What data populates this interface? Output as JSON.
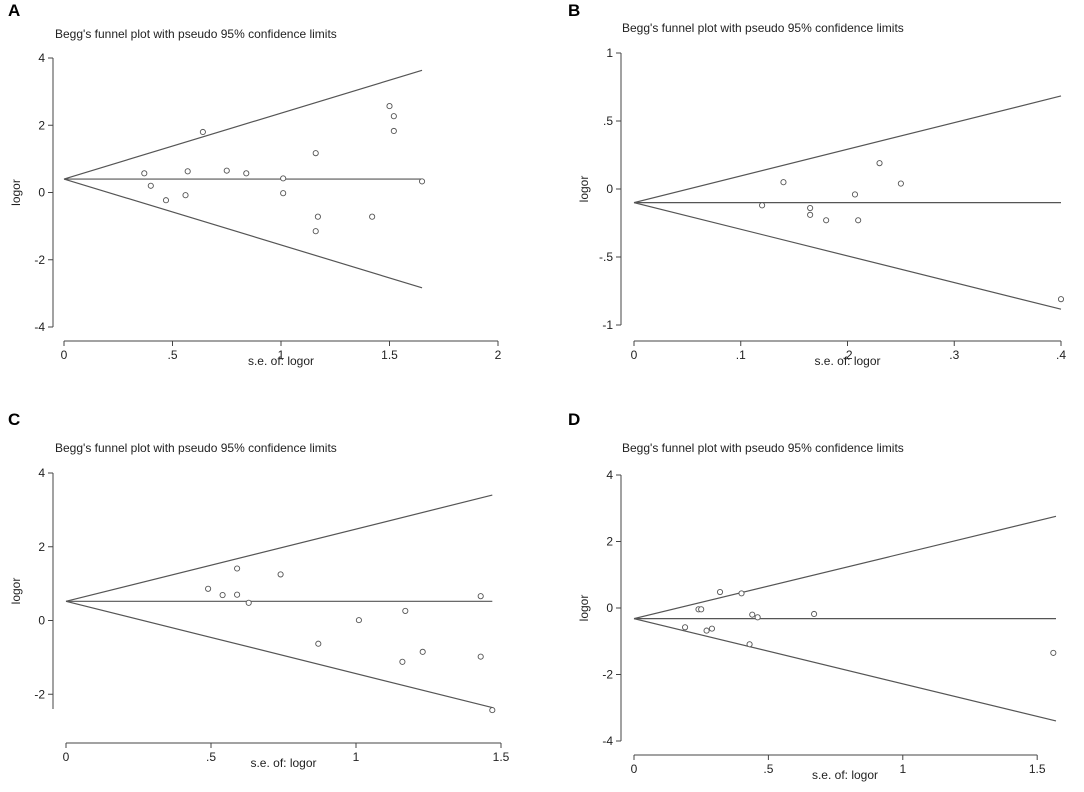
{
  "chart_data": [
    {
      "panel": "A",
      "type": "scatter",
      "title": "Begg's funnel plot with pseudo 95% confidence limits",
      "xlabel": "s.e. of: logor",
      "ylabel": "logor",
      "xlim": [
        0,
        2
      ],
      "ylim": [
        -4,
        4
      ],
      "xticks": [
        0,
        0.5,
        1,
        1.5,
        2
      ],
      "xtick_labels": [
        "0",
        ".5",
        "1",
        "1.5",
        "2"
      ],
      "yticks": [
        -4,
        -2,
        0,
        2,
        4
      ],
      "ytick_labels": [
        "-4",
        "-2",
        "0",
        "2",
        "4"
      ],
      "pooled": 0.4,
      "se_max": 1.65,
      "points": [
        {
          "x": 0.37,
          "y": 0.57
        },
        {
          "x": 0.4,
          "y": 0.2
        },
        {
          "x": 0.47,
          "y": -0.23
        },
        {
          "x": 0.56,
          "y": -0.08
        },
        {
          "x": 0.57,
          "y": 0.63
        },
        {
          "x": 0.64,
          "y": 1.8
        },
        {
          "x": 0.75,
          "y": 0.65
        },
        {
          "x": 0.84,
          "y": 0.57
        },
        {
          "x": 1.01,
          "y": 0.42
        },
        {
          "x": 1.01,
          "y": -0.02
        },
        {
          "x": 1.16,
          "y": 1.17
        },
        {
          "x": 1.17,
          "y": -0.72
        },
        {
          "x": 1.16,
          "y": -1.15
        },
        {
          "x": 1.42,
          "y": -0.72
        },
        {
          "x": 1.5,
          "y": 2.57
        },
        {
          "x": 1.52,
          "y": 2.27
        },
        {
          "x": 1.52,
          "y": 1.83
        },
        {
          "x": 1.65,
          "y": 0.33
        }
      ]
    },
    {
      "panel": "B",
      "type": "scatter",
      "title": "Begg's funnel plot with pseudo 95% confidence limits",
      "xlabel": "s.e. of: logor",
      "ylabel": "logor",
      "xlim": [
        0,
        0.4
      ],
      "ylim": [
        -1,
        1
      ],
      "xticks": [
        0,
        0.1,
        0.2,
        0.3,
        0.4
      ],
      "xtick_labels": [
        "0",
        ".1",
        ".2",
        ".3",
        ".4"
      ],
      "yticks": [
        -1,
        -0.5,
        0,
        0.5,
        1
      ],
      "ytick_labels": [
        "-1",
        "-.5",
        "0",
        ".5",
        "1"
      ],
      "pooled": -0.1,
      "se_max": 0.4,
      "points": [
        {
          "x": 0.12,
          "y": -0.12
        },
        {
          "x": 0.14,
          "y": 0.05
        },
        {
          "x": 0.165,
          "y": -0.14
        },
        {
          "x": 0.165,
          "y": -0.19
        },
        {
          "x": 0.18,
          "y": -0.23
        },
        {
          "x": 0.207,
          "y": -0.04
        },
        {
          "x": 0.21,
          "y": -0.23
        },
        {
          "x": 0.23,
          "y": 0.19
        },
        {
          "x": 0.25,
          "y": 0.04
        },
        {
          "x": 0.4,
          "y": -0.81
        }
      ]
    },
    {
      "panel": "C",
      "type": "scatter",
      "title": "Begg's funnel plot with pseudo 95% confidence limits",
      "xlabel": "s.e. of: logor",
      "ylabel": "logor",
      "xlim": [
        0,
        1.5
      ],
      "ylim": [
        -2.4,
        4
      ],
      "xticks": [
        0,
        0.5,
        1,
        1.5
      ],
      "xtick_labels": [
        "0",
        ".5",
        "1",
        "1.5"
      ],
      "yticks": [
        -2,
        0,
        2,
        4
      ],
      "ytick_labels": [
        "-2",
        "0",
        "2",
        "4"
      ],
      "pooled": 0.52,
      "se_max": 1.47,
      "points": [
        {
          "x": 0.49,
          "y": 0.86
        },
        {
          "x": 0.54,
          "y": 0.69
        },
        {
          "x": 0.59,
          "y": 1.41
        },
        {
          "x": 0.59,
          "y": 0.7
        },
        {
          "x": 0.63,
          "y": 0.48
        },
        {
          "x": 0.74,
          "y": 1.25
        },
        {
          "x": 0.87,
          "y": -0.63
        },
        {
          "x": 1.01,
          "y": 0.01
        },
        {
          "x": 1.17,
          "y": 0.26
        },
        {
          "x": 1.16,
          "y": -1.12
        },
        {
          "x": 1.23,
          "y": -0.85
        },
        {
          "x": 1.43,
          "y": 0.66
        },
        {
          "x": 1.43,
          "y": -0.98
        },
        {
          "x": 1.47,
          "y": -2.43
        }
      ]
    },
    {
      "panel": "D",
      "type": "scatter",
      "title": "Begg's funnel plot with pseudo 95% confidence limits",
      "xlabel": "s.e. of: logor",
      "ylabel": "logor",
      "xlim": [
        0,
        1.57
      ],
      "ylim": [
        -4,
        4
      ],
      "xticks": [
        0,
        0.5,
        1,
        1.5
      ],
      "xtick_labels": [
        "0",
        ".5",
        "1",
        "1.5"
      ],
      "yticks": [
        -4,
        -2,
        0,
        2,
        4
      ],
      "ytick_labels": [
        "-4",
        "-2",
        "0",
        "2",
        "4"
      ],
      "pooled": -0.32,
      "se_max": 1.57,
      "points": [
        {
          "x": 0.19,
          "y": -0.58
        },
        {
          "x": 0.24,
          "y": -0.04
        },
        {
          "x": 0.25,
          "y": -0.04
        },
        {
          "x": 0.27,
          "y": -0.68
        },
        {
          "x": 0.29,
          "y": -0.62
        },
        {
          "x": 0.32,
          "y": 0.48
        },
        {
          "x": 0.4,
          "y": 0.44
        },
        {
          "x": 0.43,
          "y": -1.09
        },
        {
          "x": 0.44,
          "y": -0.2
        },
        {
          "x": 0.46,
          "y": -0.28
        },
        {
          "x": 0.67,
          "y": -0.18
        },
        {
          "x": 1.56,
          "y": -1.35
        }
      ]
    }
  ]
}
